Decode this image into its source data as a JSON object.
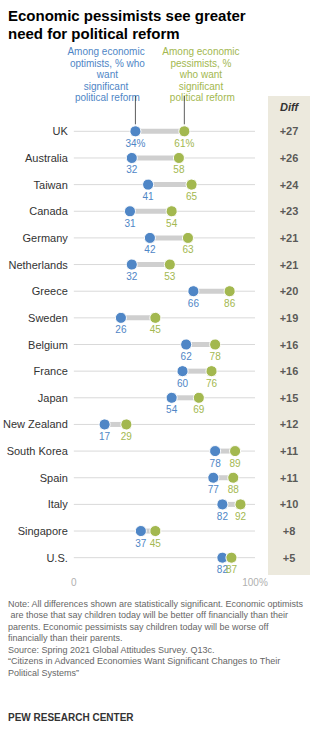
{
  "chart_data": {
    "type": "dumbbell",
    "title": "Economic pessimists see greater need for political reform",
    "categories": [
      "UK",
      "Australia",
      "Taiwan",
      "Canada",
      "Germany",
      "Netherlands",
      "Greece",
      "Sweden",
      "Belgium",
      "France",
      "Japan",
      "New Zealand",
      "South Korea",
      "Spain",
      "Italy",
      "Singapore",
      "U.S."
    ],
    "series": [
      {
        "name": "Among economic optimists, % who want significant political reform",
        "color": "#4f86c6",
        "values": [
          34,
          32,
          41,
          31,
          42,
          32,
          66,
          26,
          62,
          60,
          54,
          17,
          78,
          77,
          82,
          37,
          82
        ],
        "value_labels": [
          "34%",
          "32",
          "41",
          "31",
          "42",
          "32",
          "66",
          "26",
          "62",
          "60",
          "54",
          "17",
          "78",
          "77",
          "82",
          "37",
          "82"
        ]
      },
      {
        "name": "Among economic pessimists, % who want significant political reform",
        "color": "#a3b84f",
        "values": [
          61,
          58,
          65,
          54,
          63,
          53,
          86,
          45,
          78,
          76,
          69,
          29,
          89,
          88,
          92,
          45,
          87
        ],
        "value_labels": [
          "61%",
          "58",
          "65",
          "54",
          "63",
          "53",
          "86",
          "45",
          "78",
          "76",
          "69",
          "29",
          "89",
          "88",
          "92",
          "45",
          "87"
        ]
      }
    ],
    "diff": {
      "title": "Diff",
      "values": [
        27,
        26,
        24,
        23,
        21,
        21,
        20,
        19,
        16,
        16,
        15,
        12,
        11,
        11,
        10,
        8,
        5
      ],
      "value_labels": [
        "+27",
        "+26",
        "+24",
        "+23",
        "+21",
        "+21",
        "+20",
        "+19",
        "+16",
        "+16",
        "+15",
        "+12",
        "+11",
        "+11",
        "+10",
        "+8",
        "+5"
      ]
    },
    "xlim": [
      0,
      100
    ],
    "xticks": [
      0,
      {
        "value": 100,
        "label": "100%"
      }
    ],
    "data_labels": true,
    "footnote": [
      "Note: All differences shown are statistically significant. Economic optimists are those that say children today will be better off financially than their parents. Economic pessimists say children today will be worse off financially than their parents.",
      "Source: Spring 2021 Global Attitudes Survey. Q13c.",
      "“Citizens in Advanced Economies Want Significant Changes to Their Political Systems”"
    ],
    "credit": "PEW RESEARCH CENTER"
  }
}
